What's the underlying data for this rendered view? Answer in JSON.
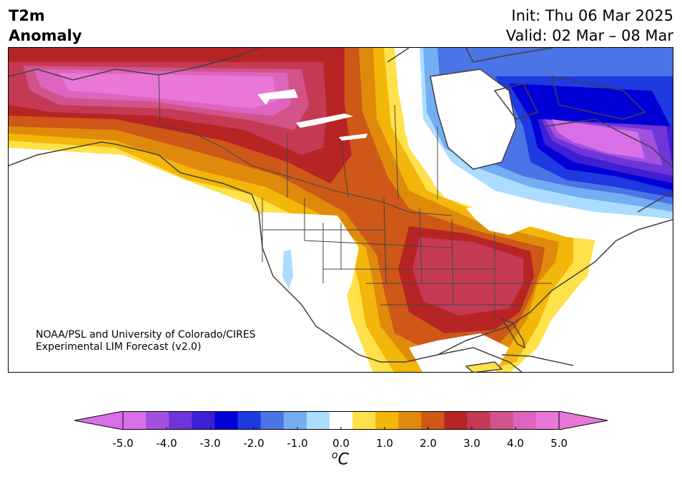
{
  "title": {
    "line1": "T2m",
    "line2": "Anomaly"
  },
  "run": {
    "init": "Init: Thu 06 Mar 2025",
    "valid": "Valid: 02 Mar – 08 Mar"
  },
  "credit": {
    "line1": "NOAA/PSL and University of Colorado/CIRES",
    "line2": "Experimental LIM Forecast (v2.0)"
  },
  "colorbar": {
    "ticks": [
      "-5.0",
      "-4.0",
      "-3.0",
      "-2.0",
      "-1.0",
      "0.0",
      "1.0",
      "2.0",
      "3.0",
      "4.0",
      "5.0"
    ],
    "unit_super": "o",
    "unit_main": "C",
    "levels": [
      -5,
      -4.5,
      -4,
      -3.5,
      -3,
      -2.5,
      -2,
      -1.5,
      -1,
      -0.5,
      0.5,
      1,
      1.5,
      2,
      2.5,
      3,
      3.5,
      4,
      4.5,
      5
    ],
    "colors": [
      "#d86fe8",
      "#a251de",
      "#7035d9",
      "#3f1fd3",
      "#0000d6",
      "#1f3ae0",
      "#4b74e6",
      "#73adf2",
      "#acdcff",
      "#ffffff",
      "#ffe14a",
      "#f3b60a",
      "#e08a0c",
      "#cd5818",
      "#b72424",
      "#c43a55",
      "#d25389",
      "#dd64bf",
      "#e877d8"
    ],
    "under_color": "#d86fe8",
    "over_color": "#e877d8"
  }
}
